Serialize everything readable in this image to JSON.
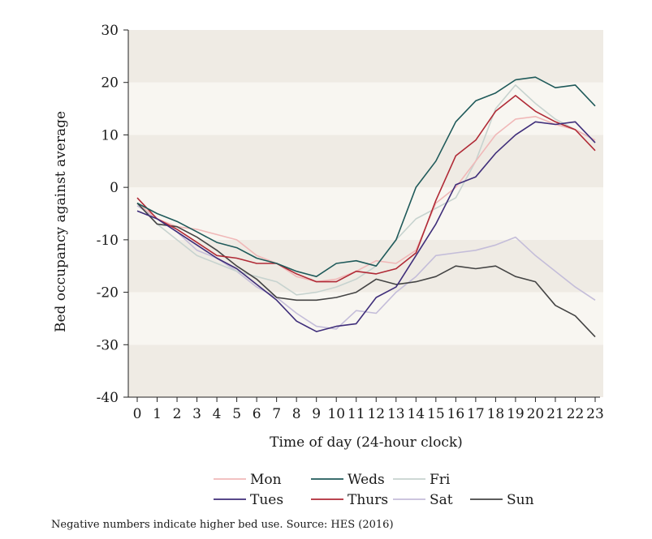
{
  "chart_data": {
    "type": "line",
    "xlabel": "Time of day (24-hour clock)",
    "ylabel": "Bed occupancy against average",
    "ylim": [
      -40,
      30
    ],
    "yticks": [
      -40,
      -30,
      -20,
      -10,
      0,
      10,
      20,
      30
    ],
    "x": [
      0,
      1,
      2,
      3,
      4,
      5,
      6,
      7,
      8,
      9,
      10,
      11,
      12,
      13,
      14,
      15,
      16,
      17,
      18,
      19,
      20,
      21,
      22,
      23
    ],
    "grid": "alternating horizontal bands",
    "legend_position": "bottom",
    "series": [
      {
        "name": "Mon",
        "color": "#f0b8b8",
        "values": [
          -3,
          -6,
          -7.5,
          -8,
          -9,
          -10,
          -13,
          -14.5,
          -17,
          -18,
          -17.5,
          -16,
          -14,
          -14.5,
          -12,
          -3,
          0,
          5,
          10,
          13,
          13.5,
          12,
          11,
          9
        ]
      },
      {
        "name": "Weds",
        "color": "#1f5a5a",
        "values": [
          -3,
          -5,
          -6.5,
          -8.5,
          -10.5,
          -11.5,
          -13.5,
          -14.5,
          -16,
          -17,
          -14.5,
          -14,
          -15,
          -10,
          0,
          5,
          12.5,
          16.5,
          18,
          20.5,
          21,
          19,
          19.5,
          15.5
        ]
      },
      {
        "name": "Fri",
        "color": "#c7d3cf",
        "values": [
          -3,
          -7,
          -10,
          -13,
          -14.5,
          -16,
          -17,
          -18,
          -20.5,
          -20,
          -19,
          -17.5,
          -15,
          -10,
          -6,
          -4,
          -2,
          5,
          15,
          19.5,
          16,
          13,
          11,
          9
        ]
      },
      {
        "name": "Tues",
        "color": "#3f2e7a",
        "values": [
          -4.5,
          -6,
          -8.5,
          -11,
          -13.5,
          -15.5,
          -18.5,
          -21.5,
          -25.5,
          -27.5,
          -26.5,
          -26,
          -21,
          -19,
          -13,
          -7,
          0.5,
          2,
          6.5,
          10,
          12.5,
          12,
          12.5,
          8.5
        ]
      },
      {
        "name": "Thurs",
        "color": "#b02a36",
        "values": [
          -2,
          -6,
          -8,
          -10.5,
          -13,
          -13.5,
          -14.5,
          -14.5,
          -16.5,
          -18,
          -18,
          -16,
          -16.5,
          -15.5,
          -12.5,
          -2.5,
          6,
          9,
          14.5,
          17.5,
          14.5,
          12.5,
          11,
          7
        ]
      },
      {
        "name": "Sat",
        "color": "#c4bdd9",
        "values": [
          -3.5,
          -6,
          -8.5,
          -12,
          -13.5,
          -16,
          -19,
          -21,
          -24,
          -26.5,
          -27,
          -23.5,
          -24,
          -20,
          -17,
          -13,
          -12.5,
          -12,
          -11,
          -9.5,
          -13,
          -16,
          -19,
          -21.5
        ]
      },
      {
        "name": "Sun",
        "color": "#444444",
        "values": [
          -3,
          -7,
          -7.5,
          -9.5,
          -12,
          -15,
          -17.5,
          -21,
          -21.5,
          -21.5,
          -21,
          -20,
          -17.5,
          -18.5,
          -18,
          -17,
          -15,
          -15.5,
          -15,
          -17,
          -18,
          -22.5,
          -24.5,
          -28.5
        ]
      }
    ]
  },
  "footnote": "Negative numbers indicate higher bed use. Source: HES (2016)"
}
